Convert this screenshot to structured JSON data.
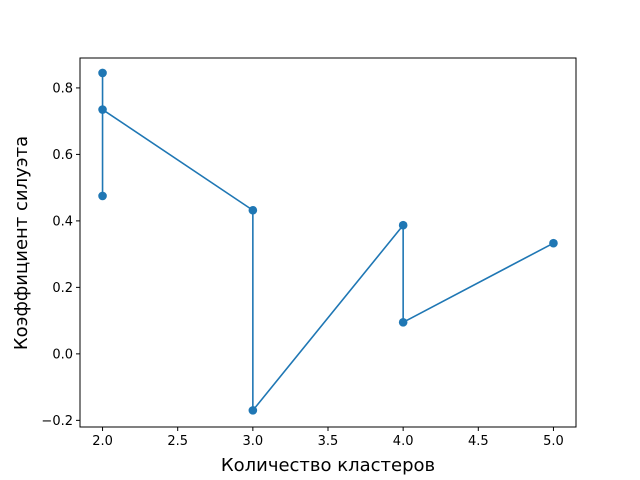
{
  "chart_data": {
    "type": "line",
    "xlabel": "Количество кластеров",
    "ylabel": "Коэффициент силуэта",
    "xlim": [
      1.85,
      5.15
    ],
    "ylim": [
      -0.22,
      0.89
    ],
    "grid": false,
    "x_ticks": [
      "2.0",
      "2.5",
      "3.0",
      "3.5",
      "4.0",
      "4.5",
      "5.0"
    ],
    "y_ticks": [
      "−0.2",
      "0.0",
      "0.2",
      "0.4",
      "0.6",
      "0.8"
    ],
    "series": [
      {
        "color": "#1f77b4",
        "marker": "circle",
        "points": [
          {
            "x": 2,
            "y": 0.845
          },
          {
            "x": 2,
            "y": 0.475
          },
          {
            "x": 2,
            "y": 0.735
          },
          {
            "x": 3,
            "y": 0.432
          },
          {
            "x": 3,
            "y": -0.17
          },
          {
            "x": 4,
            "y": 0.387
          },
          {
            "x": 4,
            "y": 0.095
          },
          {
            "x": 5,
            "y": 0.333
          }
        ]
      }
    ]
  }
}
